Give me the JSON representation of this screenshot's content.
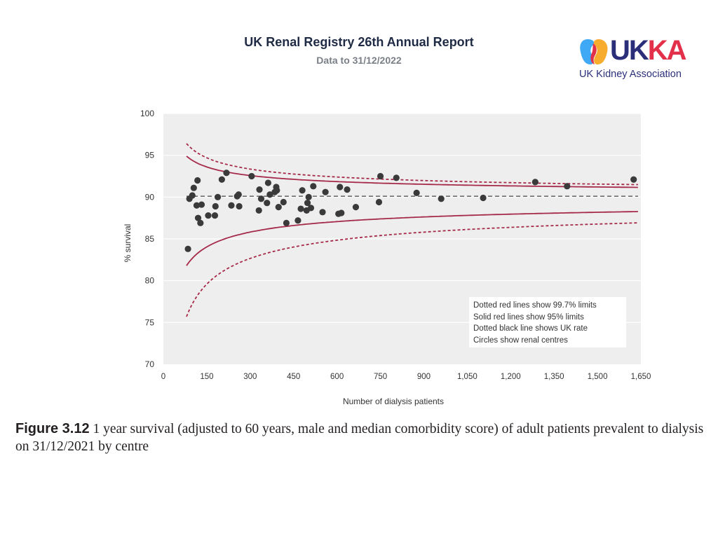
{
  "header": {
    "title": "UK Renal Registry 26th Annual Report",
    "subtitle": "Data to 31/12/2022"
  },
  "logo": {
    "word_left": "UK",
    "word_right": "KA",
    "tagline": "UK Kidney Association",
    "colors": {
      "navy": "#2b2f7a",
      "red": "#e2304a",
      "blue": "#3fa9f5",
      "orange": "#f7a823"
    }
  },
  "caption": {
    "label": "Figure 3.12",
    "text": " 1 year survival (adjusted to 60 years, male and median comorbidity score) of adult patients prevalent to dialysis on 31/12/2021 by centre"
  },
  "chart_data": {
    "type": "scatter",
    "title": "",
    "xlabel": "Number  of dialysis patients",
    "ylabel": "% survival",
    "xlim": [
      0,
      1650
    ],
    "ylim": [
      70,
      100
    ],
    "x_ticks": [
      0,
      150,
      300,
      450,
      600,
      750,
      900,
      1050,
      1200,
      1350,
      1500,
      1650
    ],
    "x_tick_labels": [
      "0",
      "150",
      "300",
      "450",
      "600",
      "750",
      "900",
      "1,050",
      "1,200",
      "1,350",
      "1,500",
      "1,650"
    ],
    "y_ticks": [
      70,
      75,
      80,
      85,
      90,
      95,
      100
    ],
    "y_tick_labels": [
      "70",
      "75",
      "80",
      "85",
      "90",
      "95",
      "100"
    ],
    "grid": true,
    "background": "#eeeeee",
    "uk_rate": 90.1,
    "series": [
      {
        "name": "Renal centres",
        "marker": "circle",
        "color": "#3a3a3a",
        "points": [
          [
            85,
            83.8
          ],
          [
            90,
            89.8
          ],
          [
            100,
            90.2
          ],
          [
            105,
            91.1
          ],
          [
            115,
            89.0
          ],
          [
            118,
            92.0
          ],
          [
            120,
            87.5
          ],
          [
            128,
            86.9
          ],
          [
            132,
            89.1
          ],
          [
            155,
            87.8
          ],
          [
            178,
            87.8
          ],
          [
            180,
            88.9
          ],
          [
            188,
            90.0
          ],
          [
            202,
            92.1
          ],
          [
            218,
            92.9
          ],
          [
            235,
            89.0
          ],
          [
            255,
            90.1
          ],
          [
            260,
            90.3
          ],
          [
            262,
            88.9
          ],
          [
            305,
            92.5
          ],
          [
            330,
            88.4
          ],
          [
            332,
            90.9
          ],
          [
            338,
            89.8
          ],
          [
            358,
            89.3
          ],
          [
            362,
            91.7
          ],
          [
            368,
            90.3
          ],
          [
            385,
            90.6
          ],
          [
            390,
            91.2
          ],
          [
            392,
            90.8
          ],
          [
            398,
            88.8
          ],
          [
            415,
            89.4
          ],
          [
            425,
            86.9
          ],
          [
            465,
            87.2
          ],
          [
            475,
            88.6
          ],
          [
            480,
            90.8
          ],
          [
            495,
            88.4
          ],
          [
            498,
            89.3
          ],
          [
            502,
            90.0
          ],
          [
            510,
            88.7
          ],
          [
            518,
            91.3
          ],
          [
            550,
            88.2
          ],
          [
            560,
            90.6
          ],
          [
            605,
            88.0
          ],
          [
            610,
            91.2
          ],
          [
            615,
            88.1
          ],
          [
            635,
            90.9
          ],
          [
            665,
            88.8
          ],
          [
            745,
            89.4
          ],
          [
            750,
            92.5
          ],
          [
            805,
            92.3
          ],
          [
            875,
            90.5
          ],
          [
            960,
            89.8
          ],
          [
            1105,
            89.9
          ],
          [
            1285,
            91.8
          ],
          [
            1395,
            91.3
          ],
          [
            1625,
            92.1
          ]
        ]
      }
    ],
    "limits": {
      "uk_rate": 90.1,
      "base_n": 80,
      "upper_95_at_base": 94.9,
      "lower_95_at_base": 81.8,
      "upper_997_at_base": 96.4,
      "lower_997_at_base": 75.7,
      "color": "#a52a4a"
    },
    "legend": {
      "position": "bottom-right",
      "entries": [
        "Dotted red lines show 99.7% limits",
        "Solid red lines show 95% limits",
        "Dotted black line shows UK rate",
        "Circles show renal centres"
      ]
    }
  }
}
